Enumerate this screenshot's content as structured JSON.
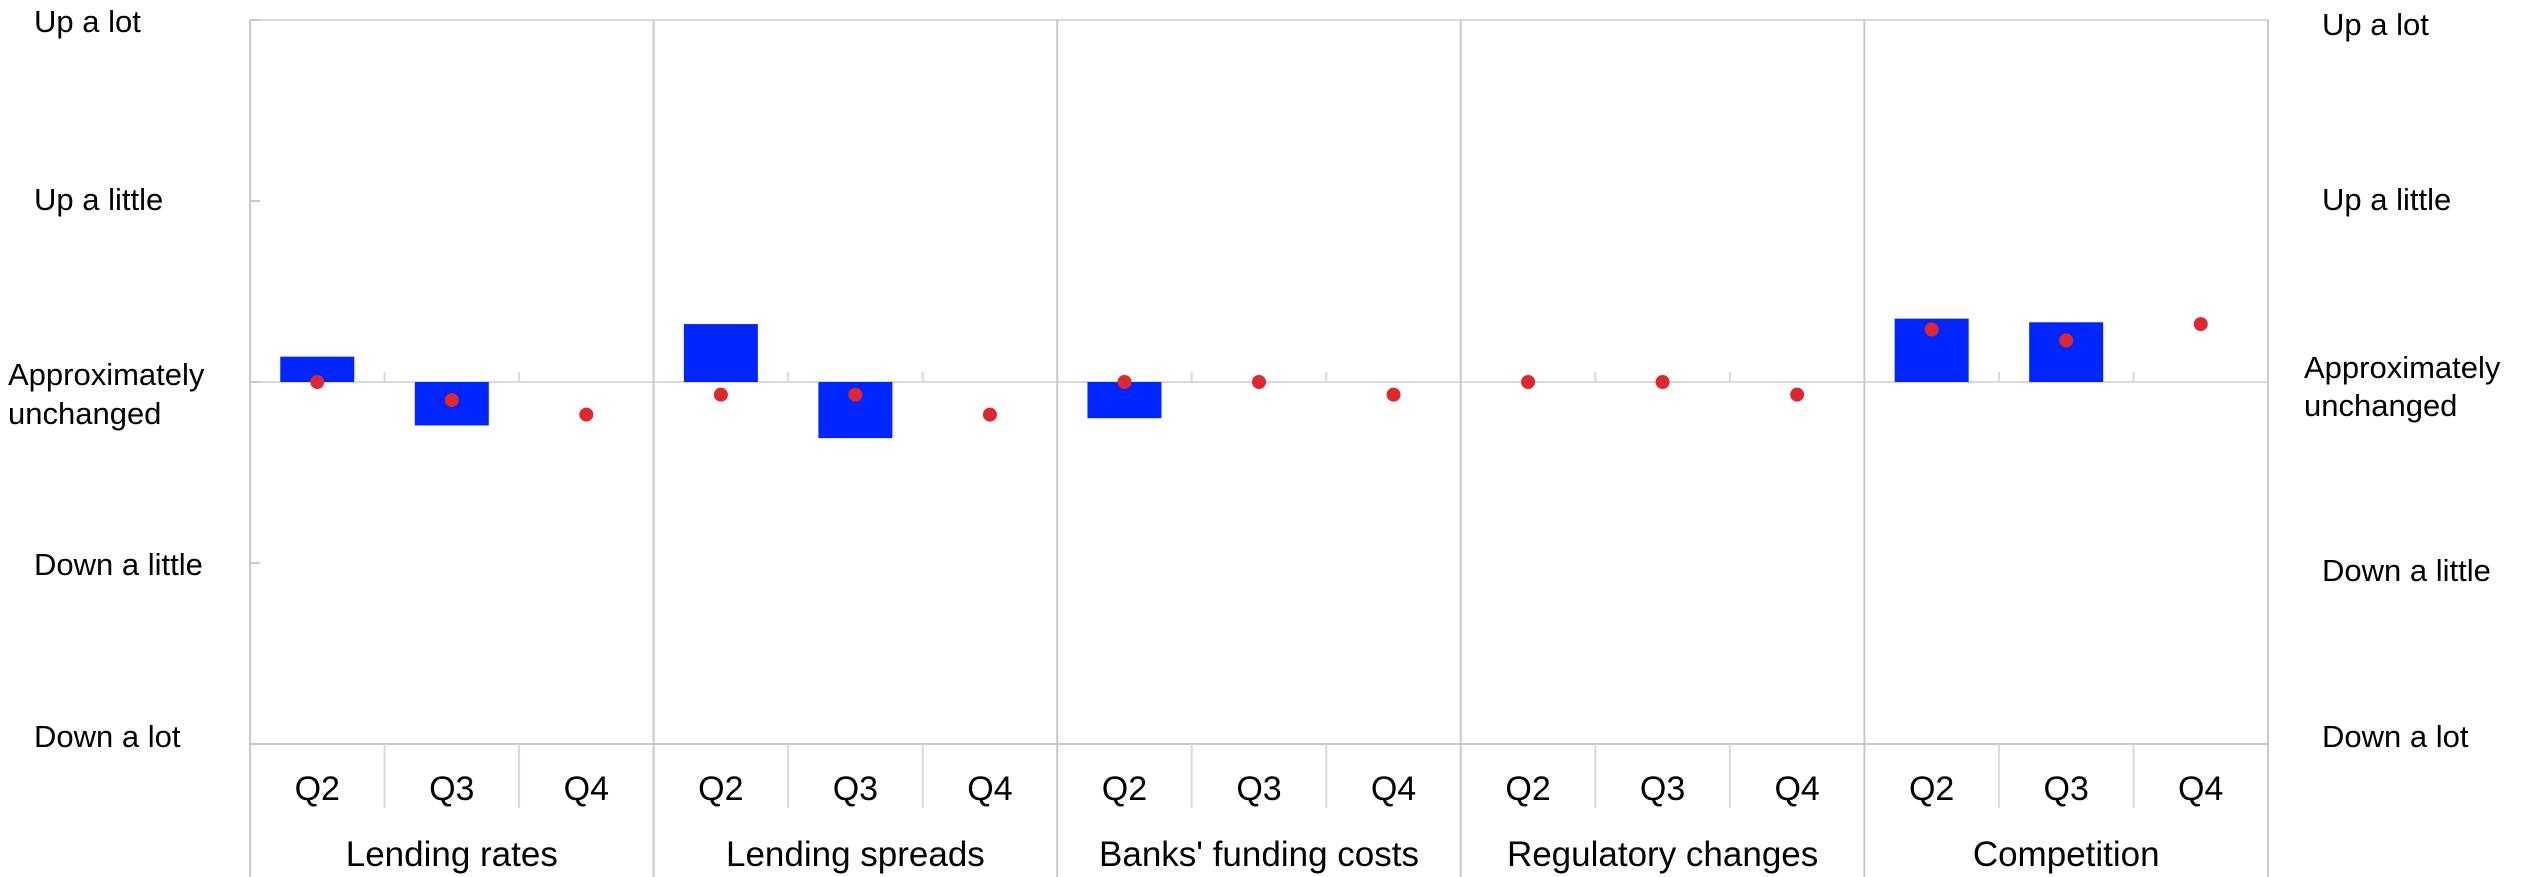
{
  "chart_data": {
    "type": "bar",
    "y_axis_labels": {
      "up_a_lot": "Up a lot",
      "up_a_little": "Up a little",
      "approx_line1": "Approximately",
      "approx_line2": "unchanged",
      "down_a_little": "Down a little",
      "down_a_lot": "Down a lot"
    },
    "ylim": [
      -2,
      2
    ],
    "grid": true,
    "colors": {
      "bar": "#0026ff",
      "dot": "#e0262e",
      "grid": "#d9d9d9",
      "axis": "#c9c9c9"
    },
    "groups": [
      {
        "label": "Lending rates",
        "categories": [
          "Q2",
          "Q3",
          "Q4"
        ],
        "bars": [
          0.14,
          -0.24,
          null
        ],
        "dots": [
          0.0,
          -0.1,
          -0.18
        ]
      },
      {
        "label": "Lending spreads",
        "categories": [
          "Q2",
          "Q3",
          "Q4"
        ],
        "bars": [
          0.32,
          -0.31,
          null
        ],
        "dots": [
          -0.07,
          -0.07,
          -0.18
        ]
      },
      {
        "label": "Banks' funding costs",
        "categories": [
          "Q2",
          "Q3",
          "Q4"
        ],
        "bars": [
          -0.2,
          null,
          null
        ],
        "dots": [
          0.0,
          0.0,
          -0.07
        ]
      },
      {
        "label": "Regulatory changes",
        "categories": [
          "Q2",
          "Q3",
          "Q4"
        ],
        "bars": [
          null,
          null,
          null
        ],
        "dots": [
          0.0,
          0.0,
          -0.07
        ]
      },
      {
        "label": "Competition",
        "categories": [
          "Q2",
          "Q3",
          "Q4"
        ],
        "bars": [
          0.35,
          0.33,
          null
        ],
        "dots": [
          0.29,
          0.23,
          0.32
        ]
      }
    ]
  }
}
